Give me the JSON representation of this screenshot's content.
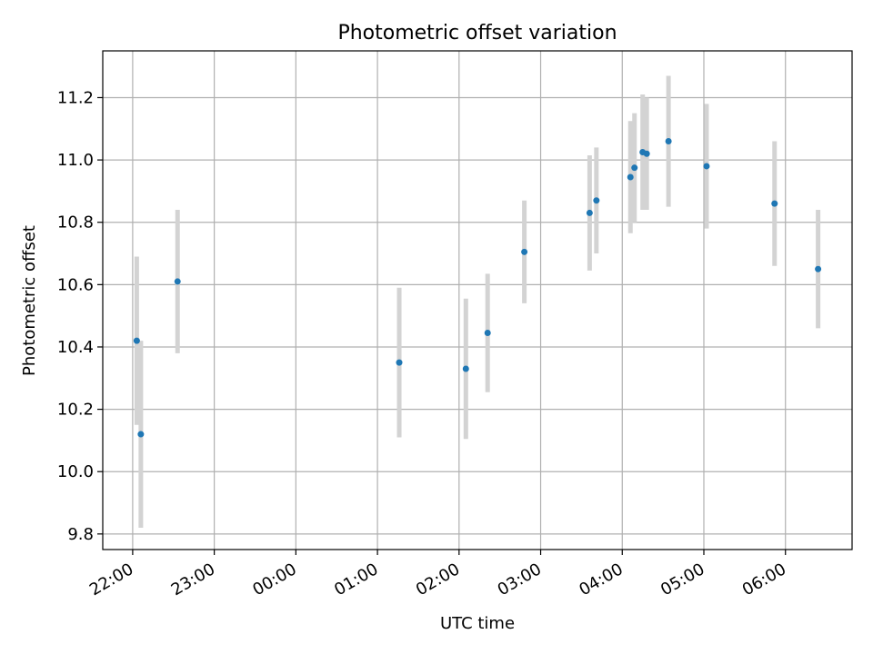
{
  "chart_data": {
    "type": "scatter",
    "title": "Photometric offset variation",
    "xlabel": "UTC time",
    "ylabel": "Photometric offset",
    "x_ticks": [
      "22:00",
      "23:00",
      "00:00",
      "01:00",
      "02:00",
      "03:00",
      "04:00",
      "05:00",
      "06:00"
    ],
    "y_ticks": [
      "9.8",
      "10.0",
      "10.2",
      "10.4",
      "10.6",
      "10.8",
      "11.0",
      "11.2"
    ],
    "xlim": [
      "21:38",
      "06:49"
    ],
    "ylim": [
      9.75,
      11.35
    ],
    "grid": true,
    "point_color": "#1f77b4",
    "errorbar_color": "#d3d3d3",
    "points": [
      {
        "x": "22:03",
        "y": 10.42,
        "err": 0.27
      },
      {
        "x": "22:06",
        "y": 10.12,
        "err": 0.3
      },
      {
        "x": "22:33",
        "y": 10.61,
        "err": 0.23
      },
      {
        "x": "01:16",
        "y": 10.35,
        "err": 0.24
      },
      {
        "x": "02:05",
        "y": 10.33,
        "err": 0.225
      },
      {
        "x": "02:21",
        "y": 10.445,
        "err": 0.19
      },
      {
        "x": "02:48",
        "y": 10.705,
        "err": 0.165
      },
      {
        "x": "03:36",
        "y": 10.83,
        "err": 0.185
      },
      {
        "x": "03:41",
        "y": 10.87,
        "err": 0.17
      },
      {
        "x": "04:06",
        "y": 10.945,
        "err": 0.18
      },
      {
        "x": "04:09",
        "y": 10.975,
        "err": 0.175
      },
      {
        "x": "04:15",
        "y": 11.025,
        "err": 0.185
      },
      {
        "x": "04:18",
        "y": 11.02,
        "err": 0.18
      },
      {
        "x": "04:34",
        "y": 11.06,
        "err": 0.21
      },
      {
        "x": "05:02",
        "y": 10.98,
        "err": 0.2
      },
      {
        "x": "05:52",
        "y": 10.86,
        "err": 0.2
      },
      {
        "x": "06:24",
        "y": 10.65,
        "err": 0.19
      }
    ]
  }
}
